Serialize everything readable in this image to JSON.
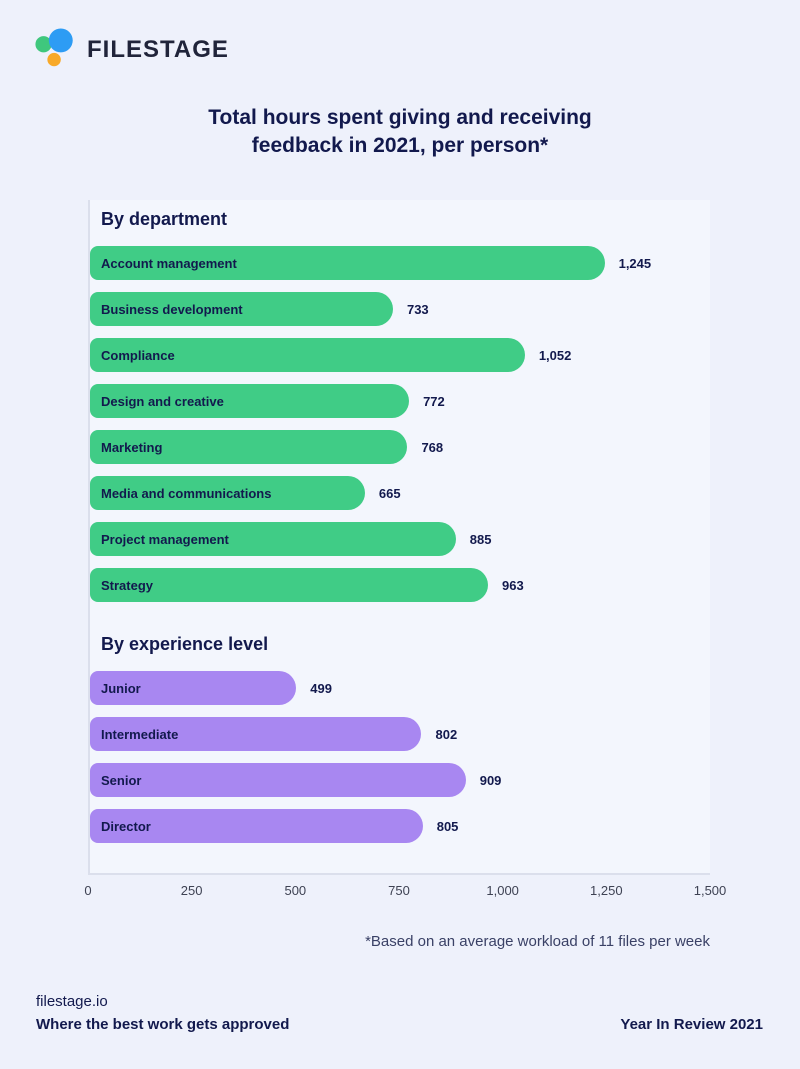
{
  "brand": {
    "name": "FILESTAGE",
    "logo_colors": {
      "green": "#3fc77d",
      "blue": "#2d9cf4",
      "orange": "#f8a928"
    }
  },
  "title": {
    "line1": "Total hours spent giving and receiving",
    "line2": "feedback in 2021, per person*"
  },
  "chart_data": {
    "type": "bar",
    "orientation": "horizontal",
    "title": "Total hours spent giving and receiving feedback in 2021, per person*",
    "xlabel": "",
    "ylabel": "",
    "xlim": [
      0,
      1500
    ],
    "grid": false,
    "x_ticks": [
      {
        "label": "0",
        "value": 0
      },
      {
        "label": "250",
        "value": 250
      },
      {
        "label": "500",
        "value": 500
      },
      {
        "label": "750",
        "value": 750
      },
      {
        "label": "1,000",
        "value": 1000
      },
      {
        "label": "1,250",
        "value": 1250
      },
      {
        "label": "1,500",
        "value": 1500
      }
    ],
    "sections": [
      {
        "heading": "By department",
        "bar_color": "#40cc86",
        "items": [
          {
            "label": "Account management",
            "value": 1245,
            "display": "1,245"
          },
          {
            "label": "Business development",
            "value": 733,
            "display": "733"
          },
          {
            "label": "Compliance",
            "value": 1052,
            "display": "1,052"
          },
          {
            "label": "Design and creative",
            "value": 772,
            "display": "772"
          },
          {
            "label": "Marketing",
            "value": 768,
            "display": "768"
          },
          {
            "label": "Media and communications",
            "value": 665,
            "display": "665"
          },
          {
            "label": "Project management",
            "value": 885,
            "display": "885"
          },
          {
            "label": "Strategy",
            "value": 963,
            "display": "963"
          }
        ]
      },
      {
        "heading": "By experience level",
        "bar_color": "#a887f1",
        "items": [
          {
            "label": "Junior",
            "value": 499,
            "display": "499"
          },
          {
            "label": "Intermediate",
            "value": 802,
            "display": "802"
          },
          {
            "label": "Senior",
            "value": 909,
            "display": "909"
          },
          {
            "label": "Director",
            "value": 805,
            "display": "805"
          }
        ]
      }
    ]
  },
  "footnote": "*Based on an average workload of 11 files per week",
  "footer": {
    "site": "filestage.io",
    "tagline": "Where the best work gets approved",
    "right": "Year In Review 2021"
  }
}
